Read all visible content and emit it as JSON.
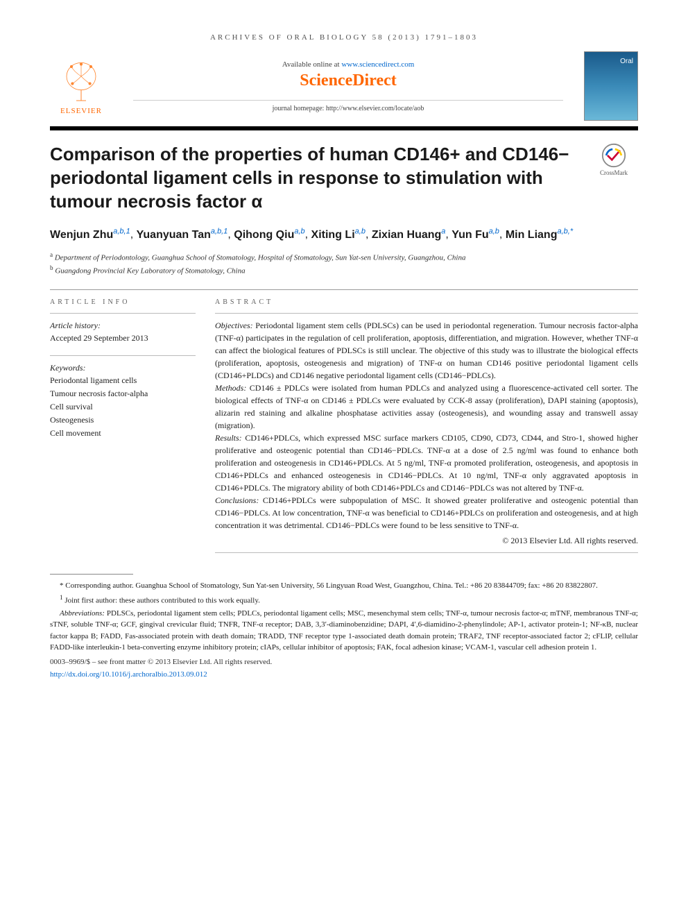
{
  "journal_header": "ARCHIVES OF ORAL BIOLOGY 58 (2013) 1791–1803",
  "banner": {
    "available_text": "Available online at ",
    "available_url": "www.sciencedirect.com",
    "sd_logo": "ScienceDirect",
    "homepage_label": "journal homepage: http://www.elsevier.com/locate/aob",
    "elsevier": "ELSEVIER",
    "cover_journal": "Oral Biology"
  },
  "crossmark_label": "CrossMark",
  "title": "Comparison of the properties of human CD146+ and CD146− periodontal ligament cells in response to stimulation with tumour necrosis factor α",
  "authors": [
    {
      "name": "Wenjun Zhu",
      "aff": "a,b,1"
    },
    {
      "name": "Yuanyuan Tan",
      "aff": "a,b,1"
    },
    {
      "name": "Qihong Qiu",
      "aff": "a,b"
    },
    {
      "name": "Xiting Li",
      "aff": "a,b"
    },
    {
      "name": "Zixian Huang",
      "aff": "a"
    },
    {
      "name": "Yun Fu",
      "aff": "a,b"
    },
    {
      "name": "Min Liang",
      "aff": "a,b,*"
    }
  ],
  "affiliations": [
    {
      "label": "a",
      "text": "Department of Periodontology, Guanghua School of Stomatology, Hospital of Stomatology, Sun Yat-sen University, Guangzhou, China"
    },
    {
      "label": "b",
      "text": "Guangdong Provincial Key Laboratory of Stomatology, China"
    }
  ],
  "info": {
    "article_info_label": "ARTICLE INFO",
    "history_label": "Article history:",
    "accepted": "Accepted 29 September 2013",
    "keywords_label": "Keywords:",
    "keywords": [
      "Periodontal ligament cells",
      "Tumour necrosis factor-alpha",
      "Cell survival",
      "Osteogenesis",
      "Cell movement"
    ]
  },
  "abstract": {
    "label": "ABSTRACT",
    "objectives_head": "Objectives:",
    "objectives": " Periodontal ligament stem cells (PDLSCs) can be used in periodontal regeneration. Tumour necrosis factor-alpha (TNF-α) participates in the regulation of cell proliferation, apoptosis, differentiation, and migration. However, whether TNF-α can affect the biological features of PDLSCs is still unclear. The objective of this study was to illustrate the biological effects (proliferation, apoptosis, osteogenesis and migration) of TNF-α on human CD146 positive periodontal ligament cells (CD146+PLDCs) and CD146 negative periodontal ligament cells (CD146−PDLCs).",
    "methods_head": "Methods:",
    "methods": " CD146 ± PDLCs were isolated from human PDLCs and analyzed using a fluorescence-activated cell sorter. The biological effects of TNF-α on CD146 ± PDLCs were evaluated by CCK-8 assay (proliferation), DAPI staining (apoptosis), alizarin red staining and alkaline phosphatase activities assay (osteogenesis), and wounding assay and transwell assay (migration).",
    "results_head": "Results:",
    "results": " CD146+PDLCs, which expressed MSC surface markers CD105, CD90, CD73, CD44, and Stro-1, showed higher proliferative and osteogenic potential than CD146−PDLCs. TNF-α at a dose of 2.5 ng/ml was found to enhance both proliferation and osteogenesis in CD146+PDLCs. At 5 ng/ml, TNF-α promoted proliferation, osteogenesis, and apoptosis in CD146+PDLCs and enhanced osteogenesis in CD146−PDLCs. At 10 ng/ml, TNF-α only aggravated apoptosis in CD146+PDLCs. The migratory ability of both CD146+PDLCs and CD146−PDLCs was not altered by TNF-α.",
    "conclusions_head": "Conclusions:",
    "conclusions": " CD146+PDLCs were subpopulation of MSC. It showed greater proliferative and osteogenic potential than CD146−PDLCs. At low concentration, TNF-α was beneficial to CD146+PDLCs on proliferation and osteogenesis, and at high concentration it was detrimental. CD146−PDLCs were found to be less sensitive to TNF-α.",
    "copyright": "© 2013 Elsevier Ltd. All rights reserved."
  },
  "footnotes": {
    "corresponding_label": "* Corresponding author.",
    "corresponding": " Guanghua School of Stomatology, Sun Yat-sen University, 56 Lingyuan Road West, Guangzhou, China. Tel.: +86 20 83844709; fax: +86 20 83822807.",
    "joint_label": "1",
    "joint": " Joint first author: these authors contributed to this work equally.",
    "abbrev_label": "Abbreviations:",
    "abbrev": " PDLSCs, periodontal ligament stem cells; PDLCs, periodontal ligament cells; MSC, mesenchymal stem cells; TNF-α, tumour necrosis factor-α; mTNF, membranous TNF-α; sTNF, soluble TNF-α; GCF, gingival crevicular fluid; TNFR, TNF-α receptor; DAB, 3,3′-diaminobenzidine; DAPI, 4′,6-diamidino-2-phenylindole; AP-1, activator protein-1; NF-κB, nuclear factor kappa B; FADD, Fas-associated protein with death domain; TRADD, TNF receptor type 1-associated death domain protein; TRAF2, TNF receptor-associated factor 2; cFLIP, cellular FADD-like interleukin-1 beta-converting enzyme inhibitory protein; cIAPs, cellular inhibitor of apoptosis; FAK, focal adhesion kinase; VCAM-1, vascular cell adhesion protein 1."
  },
  "footer": {
    "front_matter": "0003–9969/$ – see front matter © 2013 Elsevier Ltd. All rights reserved.",
    "doi": "http://dx.doi.org/10.1016/j.archoralbio.2013.09.012"
  },
  "colors": {
    "link": "#0066cc",
    "orange": "#ff6600",
    "text": "#1a1a1a",
    "gray": "#606060"
  }
}
